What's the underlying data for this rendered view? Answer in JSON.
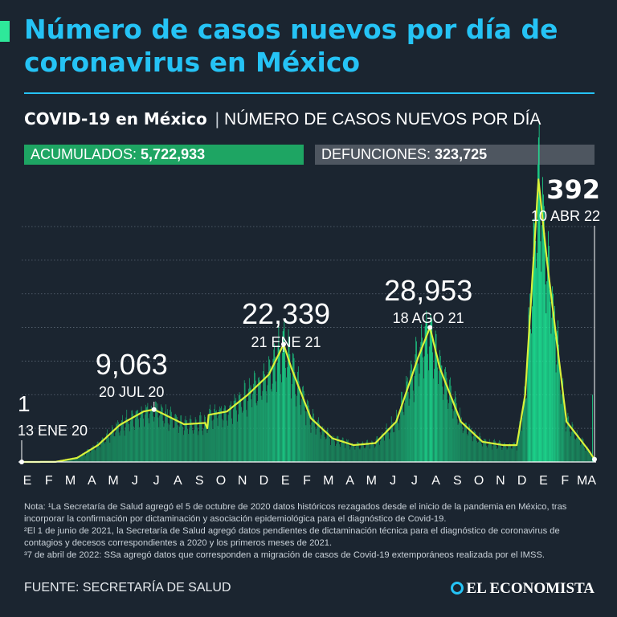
{
  "title": "Número de casos nuevos por día de coronavirus en México",
  "subtitle": {
    "bold": "COVID-19 en México",
    "separator": "|",
    "text": "NÚMERO DE CASOS NUEVOS POR DÍA"
  },
  "stats": {
    "accumulated_label": "ACUMULADOS:",
    "accumulated_value": "5,722,933",
    "deaths_label": "DEFUNCIONES:",
    "deaths_value": "323,725"
  },
  "colors": {
    "title": "#25c3f5",
    "bars": "#17d989",
    "line": "#d9f23a",
    "background": "#1b2530",
    "accumulated_box": "#1ea563",
    "deaths_box": "#4e5660"
  },
  "chart_data": {
    "type": "bar",
    "title": "",
    "xlabel": "",
    "ylabel": "",
    "grid": true,
    "ylim": [
      0,
      35000
    ],
    "x_range": [
      "2020-01-13",
      "2022-04-10"
    ],
    "x_tick_labels": [
      "E",
      "F",
      "M",
      "A",
      "M",
      "J",
      "J",
      "A",
      "S",
      "O",
      "N",
      "D",
      "E",
      "F",
      "M",
      "A",
      "M",
      "J",
      "J",
      "A",
      "S",
      "O",
      "N",
      "D",
      "E",
      "F",
      "MA"
    ],
    "series": [
      {
        "name": "",
        "kind": "bar",
        "description": "daily new cases"
      },
      {
        "name": "",
        "kind": "line",
        "description": "moving average"
      }
    ],
    "daily_profile": [
      [
        "2020-01-13",
        1
      ],
      [
        "2020-03-01",
        10
      ],
      [
        "2020-04-01",
        600
      ],
      [
        "2020-05-01",
        2500
      ],
      [
        "2020-06-01",
        5500
      ],
      [
        "2020-07-05",
        7500
      ],
      [
        "2020-07-20",
        7800
      ],
      [
        "2020-08-01",
        7200
      ],
      [
        "2020-09-01",
        5600
      ],
      [
        "2020-10-01",
        5800
      ],
      [
        "2020-10-04",
        5000
      ],
      [
        "2020-10-06",
        7000
      ],
      [
        "2020-11-01",
        7500
      ],
      [
        "2020-12-01",
        10000
      ],
      [
        "2020-12-31",
        13000
      ],
      [
        "2021-01-21",
        17500
      ],
      [
        "2021-02-01",
        14000
      ],
      [
        "2021-03-01",
        6500
      ],
      [
        "2021-04-01",
        3500
      ],
      [
        "2021-05-01",
        2500
      ],
      [
        "2021-06-01",
        2800
      ],
      [
        "2021-07-01",
        6000
      ],
      [
        "2021-08-01",
        15500
      ],
      [
        "2021-08-18",
        20000
      ],
      [
        "2021-09-01",
        14000
      ],
      [
        "2021-10-01",
        6000
      ],
      [
        "2021-11-01",
        3000
      ],
      [
        "2021-12-01",
        2500
      ],
      [
        "2021-12-20",
        2500
      ],
      [
        "2022-01-01",
        10000
      ],
      [
        "2022-01-20",
        42000
      ],
      [
        "2022-02-01",
        30000
      ],
      [
        "2022-03-01",
        6000
      ],
      [
        "2022-04-01",
        1800
      ],
      [
        "2022-04-10",
        392
      ]
    ],
    "extra_bars": [
      [
        "2022-04-07",
        10000
      ]
    ],
    "annotations": [
      {
        "value": "1",
        "date": "13 ENE 20",
        "x": "2020-01-13",
        "y": 1
      },
      {
        "value": "9,063",
        "date": "20 JUL 20",
        "x": "2020-07-20",
        "y": 9063
      },
      {
        "value": "22,339",
        "date": "21 ENE 21",
        "x": "2021-01-21",
        "y": 22339
      },
      {
        "value": "28,953",
        "date": "18 AGO 21",
        "x": "2021-08-18",
        "y": 28953
      },
      {
        "value": "392",
        "date": "10 ABR 22",
        "x": "2022-04-10",
        "y": 392
      }
    ]
  },
  "notes": [
    {
      "mark": "1",
      "text": "Nota: ¹La Secretaría de Salud agregó el 5 de octubre de 2020 datos históricos rezagados desde el inicio de la pandemia en México, tras incorporar la confirmación por dictaminación y asociación epidemiológica para el diagnóstico de Covid-19."
    },
    {
      "mark": "2",
      "text": "²El 1 de junio de 2021, la Secretaría de Salud agregó datos pendientes de dictaminación técnica para el diagnóstico de coronavirus de contagios y decesos correspondientes a 2020 y los primeros meses de 2021."
    },
    {
      "mark": "3",
      "text": "³7 de abril de 2022: SSa agregó datos que corresponden a migración de casos de Covid-19 extemporáneos realizada por el IMSS."
    }
  ],
  "source": "FUENTE: SECRETARÍA DE SALUD",
  "brand": {
    "name": "EL ECONOMISTA",
    "icon": "el-economista-logo-icon"
  }
}
